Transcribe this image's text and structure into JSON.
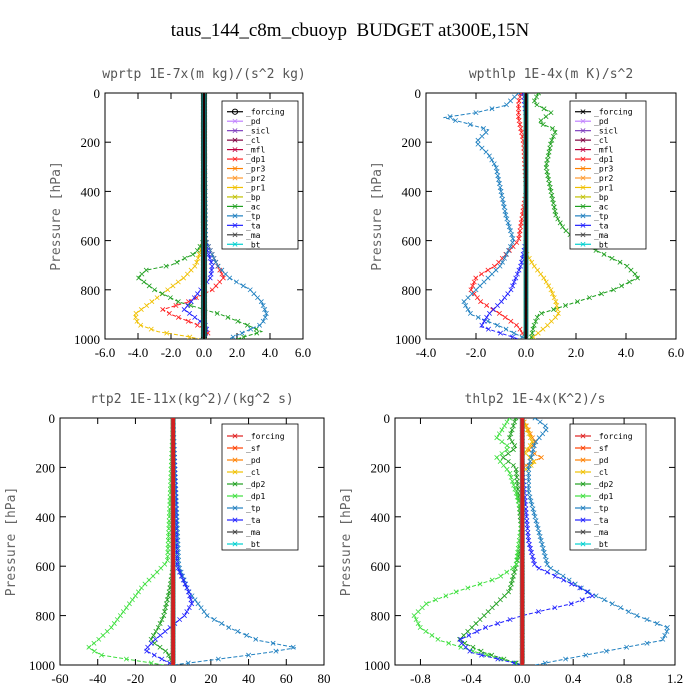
{
  "figure": {
    "title": "taus_144_c8m_cbuoyp  BUDGET at300E,15N"
  },
  "chart_data": [
    {
      "type": "line",
      "title": "wprtp  1E-7x(m kg)/(s^2 kg)",
      "ylabel": "Pressure [hPa]",
      "xlim": [
        -6,
        6
      ],
      "ylim": [
        1000,
        0
      ],
      "xticks": [
        "-6.0",
        "-4.0",
        "-2.0",
        "0.0",
        "2.0",
        "4.0",
        "6.0"
      ],
      "yticks": [
        "0",
        "200",
        "400",
        "600",
        "800",
        "1000"
      ],
      "legend": [
        "_forcing",
        "_pd",
        "_sicl",
        "_cl",
        "_mfl",
        "_dp1",
        "_pr3",
        "_pr2",
        "_pr1",
        "_bp",
        "_ac",
        "_tp",
        "_ta",
        "_ma",
        "_bt"
      ],
      "legend_position": "top-right",
      "series": [
        {
          "name": "_forcing",
          "color": "#000000",
          "marker": "o",
          "p": [
            0,
            1000
          ],
          "x": [
            0,
            0
          ]
        },
        {
          "name": "_pd",
          "color": "#c080ff",
          "p": [
            0,
            1000
          ],
          "x": [
            0,
            0
          ]
        },
        {
          "name": "_sicl",
          "color": "#8040c0",
          "p": [
            0,
            1000
          ],
          "x": [
            0,
            0
          ]
        },
        {
          "name": "_cl",
          "color": "#800040",
          "p": [
            0,
            1000
          ],
          "x": [
            0,
            0
          ]
        },
        {
          "name": "_mfl",
          "color": "#c00040",
          "p": [
            0,
            1000
          ],
          "x": [
            0,
            0
          ]
        },
        {
          "name": "_dp1",
          "color": "#ff2020",
          "p": [
            0,
            500,
            600,
            700,
            750,
            800,
            850,
            880,
            900,
            940,
            970,
            1000
          ],
          "x": [
            0,
            0,
            0.1,
            0.8,
            1.2,
            0.5,
            -1.0,
            -2.5,
            -2.0,
            -0.5,
            0.3,
            0
          ]
        },
        {
          "name": "_pr3",
          "color": "#ff8000",
          "p": [
            0,
            1000
          ],
          "x": [
            0,
            0
          ]
        },
        {
          "name": "_pr2",
          "color": "#ff9a30",
          "p": [
            0,
            1000
          ],
          "x": [
            0,
            0
          ]
        },
        {
          "name": "_pr1",
          "color": "#f0c000",
          "p": [
            0,
            600,
            700,
            750,
            800,
            850,
            900,
            940,
            970,
            990,
            1000
          ],
          "x": [
            0,
            0,
            -0.5,
            -1.2,
            -2.2,
            -3.2,
            -4.2,
            -4.0,
            -2.8,
            -1.0,
            -0.3
          ]
        },
        {
          "name": "_bp",
          "color": "#c0c000",
          "p": [
            0,
            1000
          ],
          "x": [
            0,
            0
          ]
        },
        {
          "name": "_ac",
          "color": "#20a020",
          "p": [
            0,
            600,
            650,
            700,
            720,
            750,
            800,
            850,
            900,
            940,
            970,
            1000
          ],
          "x": [
            0,
            0,
            -0.5,
            -2.0,
            -3.5,
            -4.0,
            -3.0,
            -1.5,
            1.0,
            2.5,
            3.5,
            2.0
          ]
        },
        {
          "name": "_tp",
          "color": "#2080c0",
          "p": [
            0,
            600,
            700,
            750,
            800,
            850,
            900,
            940,
            970,
            1000
          ],
          "x": [
            0,
            0.1,
            0.8,
            1.5,
            2.8,
            3.5,
            3.8,
            3.5,
            2.5,
            1.5
          ]
        },
        {
          "name": "_ta",
          "color": "#2020ff",
          "p": [
            0,
            600,
            700,
            750,
            800,
            850,
            880,
            910,
            950,
            1000
          ],
          "x": [
            0,
            0,
            0.5,
            0.4,
            -0.2,
            -0.8,
            -1.2,
            -0.6,
            0.2,
            0
          ]
        },
        {
          "name": "_ma",
          "color": "#404040",
          "p": [
            0,
            1000
          ],
          "x": [
            0,
            0
          ]
        },
        {
          "name": "_bt",
          "color": "#00d0d0",
          "p": [
            0,
            1000
          ],
          "x": [
            0,
            0
          ]
        }
      ]
    },
    {
      "type": "line",
      "title": "wpthlp  1E-4x(m K)/s^2",
      "ylabel": "Pressure [hPa]",
      "xlim": [
        -4,
        6
      ],
      "ylim": [
        1000,
        0
      ],
      "xticks": [
        "-4.0",
        "-2.0",
        "0.0",
        "2.0",
        "4.0",
        "6.0"
      ],
      "yticks": [
        "0",
        "200",
        "400",
        "600",
        "800",
        "1000"
      ],
      "legend": [
        "_forcing",
        "_pd",
        "_sicl",
        "_cl",
        "_mfl",
        "_dp1",
        "_pr3",
        "_pr2",
        "_pr1",
        "_bp",
        "_ac",
        "_tp",
        "_ta",
        "_ma",
        "_bt"
      ],
      "legend_position": "top-right",
      "series": [
        {
          "name": "_forcing",
          "color": "#000000",
          "p": [
            0,
            1000
          ],
          "x": [
            0,
            0
          ]
        },
        {
          "name": "_pd",
          "color": "#c080ff",
          "p": [
            0,
            1000
          ],
          "x": [
            0,
            0
          ]
        },
        {
          "name": "_sicl",
          "color": "#8040c0",
          "p": [
            0,
            1000
          ],
          "x": [
            0,
            0
          ]
        },
        {
          "name": "_cl",
          "color": "#800040",
          "p": [
            0,
            1000
          ],
          "x": [
            0,
            0
          ]
        },
        {
          "name": "_mfl",
          "color": "#c00040",
          "p": [
            0,
            1000
          ],
          "x": [
            0,
            0
          ]
        },
        {
          "name": "_dp1",
          "color": "#ff2020",
          "p": [
            0,
            40,
            100,
            150,
            200,
            400,
            600,
            700,
            750,
            800,
            850,
            900,
            950,
            1000
          ],
          "x": [
            -0.2,
            -0.3,
            -0.3,
            -0.2,
            -0.1,
            0,
            -0.3,
            -1.2,
            -2.0,
            -2.2,
            -1.8,
            -1.0,
            -0.3,
            0
          ]
        },
        {
          "name": "_pr3",
          "color": "#ff8000",
          "p": [
            0,
            1000
          ],
          "x": [
            0,
            0
          ]
        },
        {
          "name": "_pr2",
          "color": "#ff9a30",
          "p": [
            0,
            1000
          ],
          "x": [
            0,
            0
          ]
        },
        {
          "name": "_pr1",
          "color": "#f0c000",
          "p": [
            0,
            650,
            700,
            750,
            800,
            850,
            900,
            950,
            1000
          ],
          "x": [
            0,
            0,
            0.3,
            0.7,
            1.0,
            1.2,
            1.3,
            0.8,
            0.2
          ]
        },
        {
          "name": "_bp",
          "color": "#c0c000",
          "p": [
            0,
            1000
          ],
          "x": [
            0,
            0
          ]
        },
        {
          "name": "_ac",
          "color": "#20a020",
          "p": [
            0,
            40,
            80,
            120,
            150,
            200,
            300,
            400,
            500,
            550,
            600,
            650,
            700,
            750,
            800,
            850,
            900,
            950,
            1000
          ],
          "x": [
            0.5,
            0.3,
            1.0,
            0.5,
            1.2,
            1.0,
            0.8,
            1.0,
            1.2,
            1.5,
            2.0,
            3.0,
            4.0,
            4.5,
            3.5,
            2.0,
            0.5,
            0.3,
            0.2
          ]
        },
        {
          "name": "_tp",
          "color": "#2080c0",
          "p": [
            0,
            50,
            80,
            100,
            120,
            150,
            200,
            250,
            300,
            400,
            500,
            600,
            700,
            800,
            850,
            900,
            950,
            1000
          ],
          "x": [
            -0.3,
            -0.8,
            -2.0,
            -3.3,
            -2.5,
            -1.5,
            -2.0,
            -1.5,
            -1.2,
            -1.0,
            -0.8,
            -0.5,
            -1.0,
            -2.0,
            -2.5,
            -2.2,
            -1.0,
            0
          ]
        },
        {
          "name": "_ta",
          "color": "#2020ff",
          "p": [
            0,
            100,
            400,
            600,
            700,
            800,
            850,
            900,
            950,
            1000
          ],
          "x": [
            -0.1,
            0,
            0,
            0,
            -0.2,
            -0.6,
            -1.0,
            -1.5,
            -1.8,
            -0.3
          ]
        },
        {
          "name": "_ma",
          "color": "#404040",
          "p": [
            0,
            1000
          ],
          "x": [
            0,
            0
          ]
        },
        {
          "name": "_bt",
          "color": "#00d0d0",
          "p": [
            0,
            1000
          ],
          "x": [
            0,
            0
          ]
        }
      ]
    },
    {
      "type": "line",
      "title": "rtp2  1E-11x(kg^2)/(kg^2 s)",
      "ylabel": "Pressure [hPa]",
      "xlim": [
        -60,
        80
      ],
      "ylim": [
        1000,
        0
      ],
      "xticks": [
        "-60",
        "-40",
        "-20",
        "0",
        "20",
        "40",
        "60",
        "80"
      ],
      "yticks": [
        "0",
        "200",
        "400",
        "600",
        "800",
        "1000"
      ],
      "legend": [
        "_forcing",
        "_sf",
        "_pd",
        "_cl",
        "_dp2",
        "_dp1",
        "_tp",
        "_ta",
        "_ma",
        "_bt"
      ],
      "legend_position": "top-right",
      "series": [
        {
          "name": "_forcing",
          "color": "#e02020",
          "p": [
            0,
            1000
          ],
          "x": [
            0,
            0
          ]
        },
        {
          "name": "_sf",
          "color": "#ff4000",
          "p": [
            0,
            1000
          ],
          "x": [
            0,
            0
          ]
        },
        {
          "name": "_pd",
          "color": "#ff8000",
          "p": [
            0,
            1000
          ],
          "x": [
            0,
            0
          ]
        },
        {
          "name": "_cl",
          "color": "#f0c000",
          "p": [
            0,
            1000
          ],
          "x": [
            0,
            0
          ]
        },
        {
          "name": "_dp2",
          "color": "#20a020",
          "p": [
            0,
            600,
            700,
            800,
            850,
            900,
            950,
            1000
          ],
          "x": [
            0,
            0,
            -2,
            -5,
            -8,
            -12,
            -3,
            0
          ]
        },
        {
          "name": "_dp1",
          "color": "#40e040",
          "p": [
            0,
            580,
            620,
            680,
            750,
            800,
            850,
            900,
            930,
            960,
            1000
          ],
          "x": [
            0,
            -3,
            -8,
            -16,
            -23,
            -28,
            -33,
            -40,
            -45,
            -38,
            -5
          ]
        },
        {
          "name": "_tp",
          "color": "#2080c0",
          "p": [
            0,
            600,
            700,
            800,
            850,
            900,
            930,
            950,
            980,
            1000
          ],
          "x": [
            0,
            3,
            8,
            18,
            30,
            45,
            65,
            50,
            20,
            0
          ]
        },
        {
          "name": "_ta",
          "color": "#2020ff",
          "p": [
            0,
            600,
            700,
            750,
            800,
            850,
            900,
            940,
            980,
            1000
          ],
          "x": [
            0,
            2,
            8,
            10,
            6,
            -2,
            -10,
            -15,
            -5,
            0
          ]
        },
        {
          "name": "_ma",
          "color": "#404040",
          "p": [
            0,
            1000
          ],
          "x": [
            0,
            0
          ]
        },
        {
          "name": "_bt",
          "color": "#00d0d0",
          "p": [
            0,
            1000
          ],
          "x": [
            0,
            0
          ]
        }
      ]
    },
    {
      "type": "line",
      "title": "thlp2  1E-4x(K^2)/s",
      "ylabel": "Pressure [hPa]",
      "xlim": [
        -1.0,
        1.2
      ],
      "ylim": [
        1000,
        0
      ],
      "xticks": [
        "-0.8",
        "-0.4",
        "0.0",
        "0.4",
        "0.8",
        "1.2"
      ],
      "yticks": [
        "0",
        "200",
        "400",
        "600",
        "800",
        "1000"
      ],
      "legend": [
        "_forcing",
        "_sf",
        "_pd",
        "_cl",
        "_dp2",
        "_dp1",
        "_tp",
        "_ta",
        "_ma",
        "_bt"
      ],
      "legend_position": "top-right",
      "series": [
        {
          "name": "_forcing",
          "color": "#e02020",
          "p": [
            0,
            1000
          ],
          "x": [
            0,
            0
          ]
        },
        {
          "name": "_sf",
          "color": "#ff4000",
          "p": [
            0,
            1000
          ],
          "x": [
            0,
            0
          ]
        },
        {
          "name": "_pd",
          "color": "#ff8000",
          "p": [
            0,
            100,
            130,
            160,
            200,
            1000
          ],
          "x": [
            0,
            0.1,
            0.05,
            0.15,
            0,
            0
          ]
        },
        {
          "name": "_cl",
          "color": "#f0c000",
          "p": [
            0,
            100,
            140,
            180,
            220,
            1000
          ],
          "x": [
            0,
            0.08,
            0.02,
            0.1,
            0,
            0
          ]
        },
        {
          "name": "_dp2",
          "color": "#20a020",
          "p": [
            0,
            80,
            120,
            160,
            200,
            500,
            700,
            800,
            900,
            950,
            1000
          ],
          "x": [
            -0.05,
            -0.1,
            -0.05,
            -0.15,
            -0.05,
            0,
            -0.1,
            -0.3,
            -0.5,
            -0.3,
            0
          ]
        },
        {
          "name": "_dp1",
          "color": "#40e040",
          "p": [
            0,
            80,
            120,
            160,
            220,
            300,
            400,
            600,
            650,
            700,
            750,
            800,
            850,
            900,
            950,
            1000
          ],
          "x": [
            -0.1,
            -0.2,
            -0.1,
            -0.2,
            -0.1,
            -0.05,
            0,
            -0.05,
            -0.2,
            -0.5,
            -0.75,
            -0.85,
            -0.8,
            -0.65,
            -0.35,
            0
          ]
        },
        {
          "name": "_tp",
          "color": "#2080c0",
          "p": [
            0,
            40,
            100,
            200,
            300,
            400,
            500,
            600,
            650,
            700,
            750,
            800,
            850,
            900,
            950,
            1000
          ],
          "x": [
            0.1,
            0.2,
            0.1,
            0.05,
            0.05,
            0.1,
            0.15,
            0.2,
            0.35,
            0.5,
            0.7,
            0.9,
            1.15,
            1.1,
            0.6,
            0.1
          ]
        },
        {
          "name": "_ta",
          "color": "#2020ff",
          "p": [
            0,
            200,
            500,
            600,
            650,
            700,
            720,
            750,
            800,
            850,
            900,
            950,
            1000
          ],
          "x": [
            0,
            0,
            0.05,
            0.1,
            0.3,
            0.5,
            0.55,
            0.4,
            0,
            -0.3,
            -0.5,
            -0.4,
            0
          ]
        },
        {
          "name": "_ma",
          "color": "#404040",
          "p": [
            0,
            1000
          ],
          "x": [
            0,
            0
          ]
        },
        {
          "name": "_bt",
          "color": "#00d0d0",
          "p": [
            0,
            1000
          ],
          "x": [
            0,
            0
          ]
        }
      ]
    }
  ]
}
